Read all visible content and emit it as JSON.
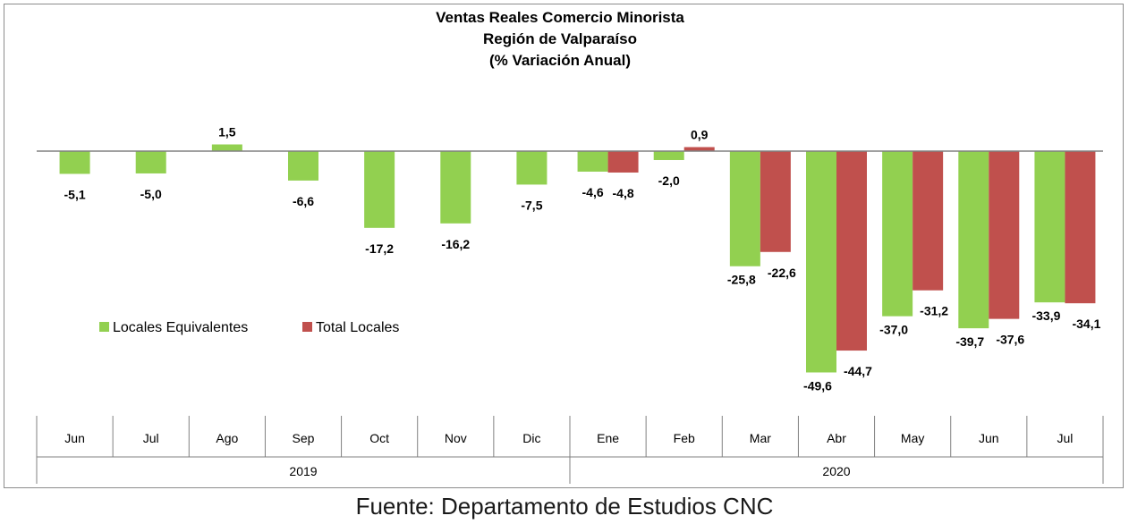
{
  "chart_data": {
    "type": "bar",
    "title_lines": [
      "Ventas Reales Comercio Minorista",
      "Región de Valparaíso",
      "(% Variación Anual)"
    ],
    "categories": [
      "Jun",
      "Jul",
      "Ago",
      "Sep",
      "Oct",
      "Nov",
      "Dic",
      "Ene",
      "Feb",
      "Mar",
      "Abr",
      "May",
      "Jun",
      "Jul"
    ],
    "year_groups": [
      {
        "label": "2019",
        "start": 0,
        "end": 6
      },
      {
        "label": "2020",
        "start": 7,
        "end": 13
      }
    ],
    "series": [
      {
        "name": "Locales Equivalentes",
        "color": "#92d050",
        "values": [
          -5.1,
          -5.0,
          1.5,
          -6.6,
          -17.2,
          -16.2,
          -7.5,
          -4.6,
          -2.0,
          -25.8,
          -49.6,
          -37.0,
          -39.7,
          -33.9
        ],
        "labels": [
          "-5,1",
          "-5,0",
          "1,5",
          "-6,6",
          "-17,2",
          "-16,2",
          "-7,5",
          "-4,6",
          "-2,0",
          "-25,8",
          "-49,6",
          "-37,0",
          "-39,7",
          "-33,9"
        ]
      },
      {
        "name": "Total Locales",
        "color": "#c0504d",
        "values": [
          null,
          null,
          null,
          null,
          null,
          null,
          null,
          -4.8,
          0.9,
          -22.6,
          -44.7,
          -31.2,
          -37.6,
          -34.1
        ],
        "labels": [
          null,
          null,
          null,
          null,
          null,
          null,
          null,
          "-4,8",
          "0,9",
          "-22,6",
          "-44,7",
          "-31,2",
          "-37,6",
          "-34,1"
        ]
      }
    ],
    "legend_position": "left",
    "grid": false
  },
  "source": "Fuente: Departamento de Estudios CNC"
}
